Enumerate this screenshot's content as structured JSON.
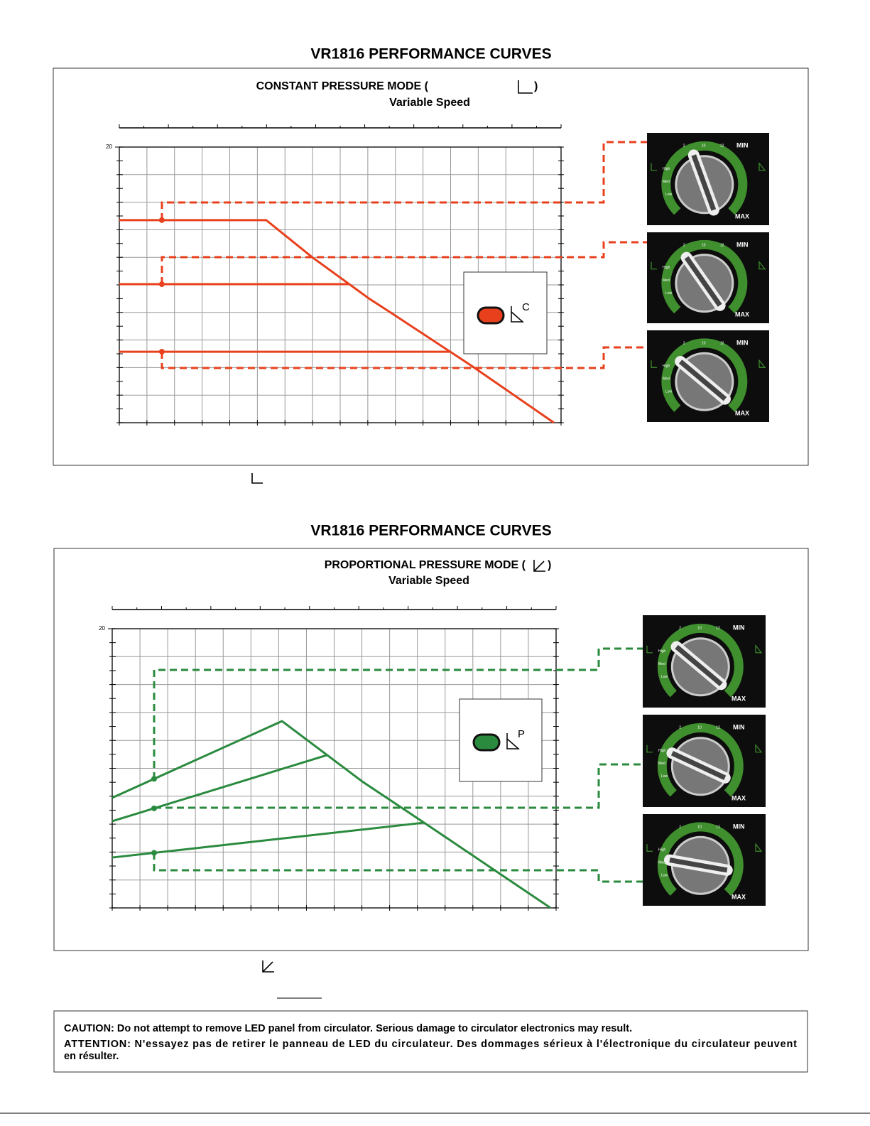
{
  "sections": [
    {
      "heading": "VR1816 PERFORMANCE CURVES",
      "mode_before": "CONSTANT PRESSURE MODE (",
      "mode_after": ")",
      "subtitle": "Variable Speed",
      "led_letter": "C",
      "chart_data": {
        "type": "line",
        "xlim": [
          0,
          16
        ],
        "ylim": [
          0,
          20
        ],
        "yticks": [
          20
        ],
        "grid": true,
        "marker_x": 1.54,
        "color": "#e8401c",
        "series": [
          {
            "x": [
              0,
              5.32,
              6.99,
              9.05,
              9.82,
              12.78,
              15.74
            ],
            "values": [
              14.7,
              14.7,
              12.0,
              9.0,
              8.0,
              4.1,
              0
            ]
          },
          {
            "x": [
              0,
              8.28
            ],
            "values": [
              10.05,
              10.05
            ]
          },
          {
            "x": [
              0,
              12.01
            ],
            "values": [
              5.15,
              5.15
            ]
          }
        ]
      }
    },
    {
      "heading": "VR1816 PERFORMANCE CURVES",
      "mode_before": "PROPORTIONAL PRESSURE MODE (",
      "mode_after": ")",
      "subtitle": "Variable Speed",
      "led_letter": "P",
      "chart_data": {
        "type": "line",
        "xlim": [
          0,
          16
        ],
        "ylim": [
          0,
          20
        ],
        "yticks": [
          20
        ],
        "grid": true,
        "marker_x": 1.51,
        "color": "#2a8a3e",
        "series": [
          {
            "x": [
              0,
              6.12,
              9.01,
              11.32,
              15.8
            ],
            "values": [
              7.89,
              13.38,
              9.06,
              6.0,
              0
            ]
          },
          {
            "x": [
              0,
              7.73
            ],
            "values": [
              6.21,
              10.94
            ]
          },
          {
            "x": [
              0,
              11.26
            ],
            "values": [
              3.61,
              6.11
            ]
          }
        ]
      }
    }
  ],
  "dial": {
    "min": "MIN",
    "max": "MAX",
    "high": "High",
    "med": "Med",
    "low": "Low",
    "marks": [
      "2",
      "10",
      "12"
    ]
  },
  "caution": {
    "en": "CAUTION: Do not attempt to remove LED panel from circulator. Serious damage to circulator electronics may result.",
    "fr_line1": "ATTENTION: N'essayez pas de retirer le panneau de LED du circulateur. Des dommages sérieux à l'électronique du circulateur peuvent",
    "fr_line2": "en résulter."
  }
}
